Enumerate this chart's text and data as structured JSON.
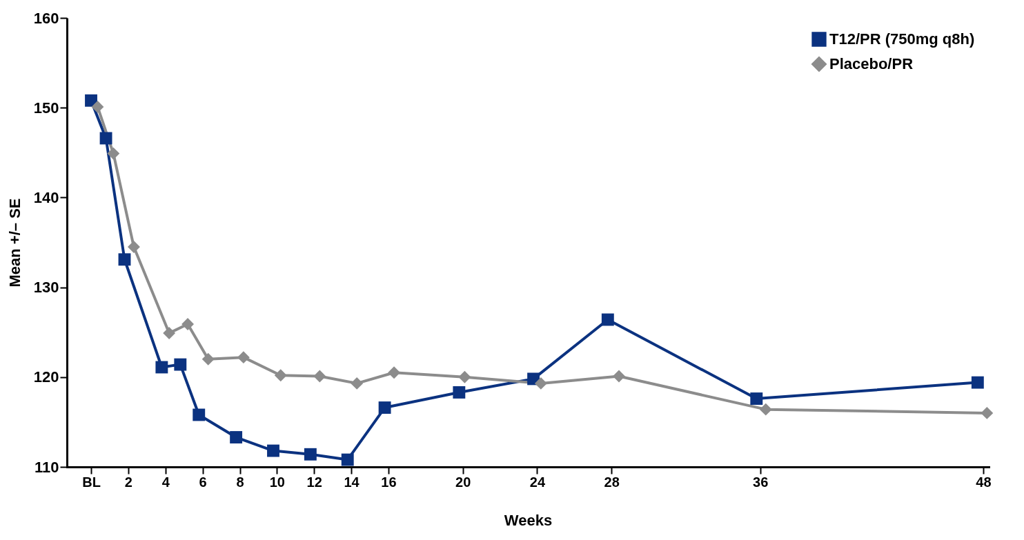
{
  "chart_data": {
    "type": "line",
    "xlabel": "Weeks",
    "ylabel": "Mean +/– SE",
    "xlim": [
      -1.3,
      48.3
    ],
    "ylim": [
      110,
      160
    ],
    "xticks": [
      {
        "value": 0,
        "label": "BL"
      },
      2,
      4,
      6,
      8,
      10,
      12,
      14,
      16,
      20,
      24,
      28,
      36,
      48
    ],
    "yticks": [
      110,
      120,
      130,
      140,
      150,
      160
    ],
    "legend": "top right",
    "grid": false,
    "line_style": "solid",
    "series": [
      {
        "name": "T12/PR (750mg q8h)",
        "color": "#0b3280",
        "marker": "square",
        "x": [
          0,
          0.8,
          1.8,
          3.8,
          4.8,
          5.8,
          7.8,
          9.8,
          11.8,
          13.8,
          15.8,
          19.8,
          23.8,
          27.8,
          35.8,
          47.7
        ],
        "values": [
          150.8,
          146.6,
          133.1,
          121.1,
          121.4,
          115.8,
          113.3,
          111.8,
          111.4,
          110.8,
          116.6,
          118.3,
          119.8,
          126.4,
          117.6,
          119.4
        ]
      },
      {
        "name": "Placebo/PR",
        "color": "#8c8c8c",
        "marker": "diamond",
        "x": [
          0.35,
          1.2,
          2.3,
          4.2,
          5.2,
          6.3,
          8.2,
          10.2,
          12.3,
          14.3,
          16.3,
          20.1,
          24.2,
          28.4,
          36.3,
          48.2
        ],
        "values": [
          150.1,
          144.9,
          134.5,
          124.9,
          125.9,
          122.0,
          122.2,
          120.2,
          120.1,
          119.3,
          120.5,
          120.0,
          119.3,
          120.1,
          116.4,
          116.0
        ]
      }
    ]
  }
}
